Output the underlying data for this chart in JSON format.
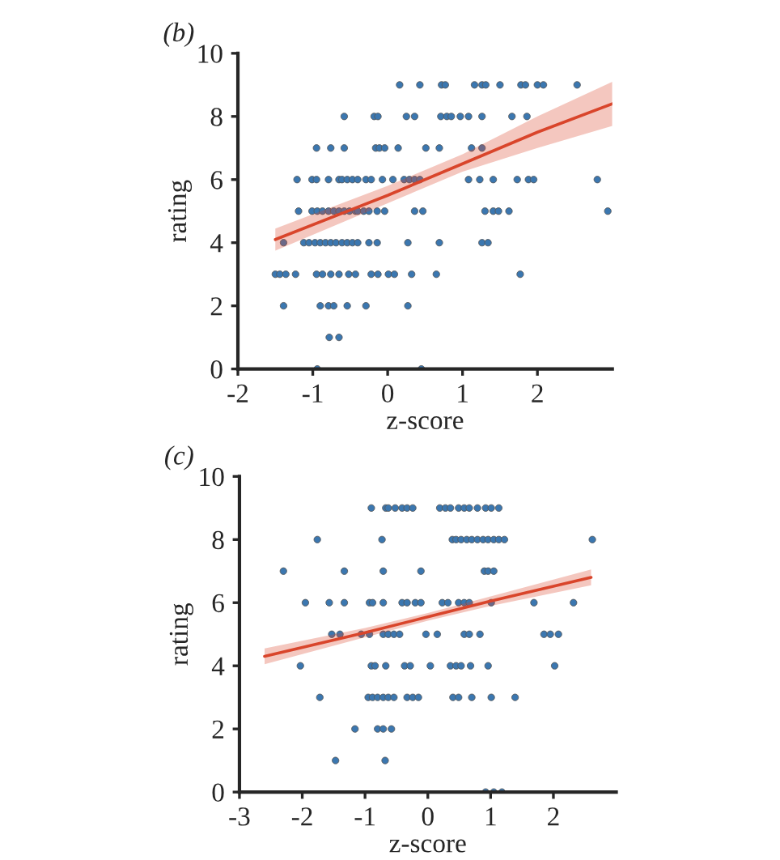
{
  "chart_data": [
    {
      "type": "scatter",
      "annotations": [
        "(b)"
      ],
      "xlabel": "z-score",
      "ylabel": "rating",
      "xlim": [
        -2,
        3
      ],
      "ylim": [
        0,
        10
      ],
      "xticks": [
        -2,
        -1,
        0,
        1,
        2
      ],
      "yticks": [
        0,
        2,
        4,
        6,
        8,
        10
      ],
      "grid": false,
      "legend": false,
      "series": [
        {
          "marker": "circle",
          "color": "#3b77b0",
          "x": [
            0.16,
            0.43,
            0.72,
            0.77,
            1.16,
            1.26,
            1.31,
            1.5,
            1.78,
            1.84,
            2.0,
            2.08,
            2.53,
            -0.58,
            -0.18,
            -0.13,
            0.25,
            0.36,
            0.71,
            0.79,
            0.85,
            0.97,
            1.08,
            1.26,
            1.66,
            1.86,
            -0.95,
            -0.76,
            -0.58,
            -0.16,
            -0.11,
            -0.04,
            0.14,
            0.51,
            0.69,
            1.12,
            1.26,
            -1.21,
            -1.01,
            -0.95,
            -0.79,
            -0.65,
            -0.61,
            -0.54,
            -0.47,
            -0.4,
            -0.29,
            -0.22,
            -0.07,
            0.07,
            0.22,
            0.29,
            0.36,
            0.43,
            1.08,
            1.23,
            1.41,
            1.73,
            1.88,
            1.95,
            2.8,
            -1.19,
            -1.01,
            -0.94,
            -0.87,
            -0.79,
            -0.72,
            -0.65,
            -0.58,
            -0.51,
            -0.43,
            -0.4,
            -0.32,
            -0.25,
            -0.14,
            -0.04,
            0.36,
            0.47,
            1.3,
            1.41,
            1.48,
            1.62,
            2.94,
            -1.39,
            -1.12,
            -1.05,
            -0.97,
            -0.9,
            -0.83,
            -0.76,
            -0.69,
            -0.61,
            -0.54,
            -0.47,
            -0.4,
            -0.25,
            -0.14,
            0.27,
            0.69,
            1.26,
            1.34,
            -1.5,
            -1.44,
            -1.36,
            -1.23,
            -0.95,
            -0.87,
            -0.76,
            -0.65,
            -0.52,
            -0.43,
            -0.22,
            -0.13,
            0.01,
            0.09,
            0.32,
            0.65,
            1.77,
            -1.39,
            -0.9,
            -0.79,
            -0.72,
            -0.54,
            -0.29,
            0.27,
            -0.78,
            -0.65,
            -0.94,
            0.45
          ],
          "values": [
            9,
            9,
            9,
            9,
            9,
            9,
            9,
            9,
            9,
            9,
            9,
            9,
            9,
            8,
            8,
            8,
            8,
            8,
            8,
            8,
            8,
            8,
            8,
            8,
            8,
            8,
            7,
            7,
            7,
            7,
            7,
            7,
            7,
            7,
            7,
            7,
            7,
            6,
            6,
            6,
            6,
            6,
            6,
            6,
            6,
            6,
            6,
            6,
            6,
            6,
            6,
            6,
            6,
            6,
            6,
            6,
            6,
            6,
            6,
            6,
            6,
            5,
            5,
            5,
            5,
            5,
            5,
            5,
            5,
            5,
            5,
            5,
            5,
            5,
            5,
            5,
            5,
            5,
            5,
            5,
            5,
            5,
            5,
            4,
            4,
            4,
            4,
            4,
            4,
            4,
            4,
            4,
            4,
            4,
            4,
            4,
            4,
            4,
            4,
            4,
            4,
            3,
            3,
            3,
            3,
            3,
            3,
            3,
            3,
            3,
            3,
            3,
            3,
            3,
            3,
            3,
            3,
            3,
            2,
            2,
            2,
            2,
            2,
            2,
            2,
            1,
            1,
            0,
            0
          ]
        },
        {
          "type": "line",
          "color": "#d9452b",
          "x": [
            -1.5,
            0,
            1,
            2,
            3
          ],
          "values": [
            4.1,
            5.5,
            6.5,
            7.5,
            8.4
          ],
          "lower": [
            3.75,
            5.25,
            6.25,
            7.0,
            7.7
          ],
          "upper": [
            4.45,
            5.8,
            6.8,
            8.0,
            9.1
          ]
        }
      ]
    },
    {
      "type": "scatter",
      "annotations": [
        "(c)"
      ],
      "xlabel": "z-score",
      "ylabel": "rating",
      "xlim": [
        -3,
        3
      ],
      "ylim": [
        0,
        10
      ],
      "xticks": [
        -3,
        -2,
        -1,
        0,
        1,
        2
      ],
      "yticks": [
        0,
        2,
        4,
        6,
        8,
        10
      ],
      "grid": false,
      "legend": false,
      "series": [
        {
          "marker": "circle",
          "color": "#3b77b0",
          "x": [
            -0.9,
            -0.67,
            -0.63,
            -0.52,
            -0.41,
            -0.33,
            -0.24,
            0.19,
            0.28,
            0.36,
            0.49,
            0.58,
            0.66,
            0.79,
            0.92,
            1.01,
            1.13,
            -1.76,
            -0.73,
            0.39,
            0.45,
            0.53,
            0.62,
            0.7,
            0.79,
            0.88,
            0.96,
            1.05,
            1.13,
            1.22,
            2.62,
            -2.3,
            -1.33,
            -0.71,
            -0.11,
            0.9,
            0.96,
            1.05,
            -1.95,
            -1.57,
            -1.33,
            -0.93,
            -0.88,
            -0.71,
            -0.41,
            -0.33,
            -0.2,
            -0.11,
            0.23,
            0.32,
            0.49,
            0.58,
            0.66,
            1.01,
            1.69,
            2.32,
            -1.53,
            -1.4,
            -1.06,
            -0.93,
            -0.71,
            -0.63,
            -0.54,
            -0.45,
            -0.03,
            0.15,
            0.58,
            0.66,
            0.83,
            1.85,
            1.95,
            2.08,
            -2.03,
            -0.9,
            -0.84,
            -0.67,
            -0.37,
            -0.28,
            0.04,
            0.36,
            0.45,
            0.53,
            0.68,
            0.96,
            2.02,
            -1.72,
            -0.95,
            -0.88,
            -0.8,
            -0.71,
            -0.63,
            -0.54,
            -0.33,
            -0.24,
            -0.15,
            0.4,
            0.49,
            0.7,
            1.01,
            1.39,
            -1.16,
            -0.8,
            -0.71,
            -0.58,
            -1.47,
            -0.68,
            0.92,
            1.05,
            1.18
          ],
          "values": [
            9,
            9,
            9,
            9,
            9,
            9,
            9,
            9,
            9,
            9,
            9,
            9,
            9,
            9,
            9,
            9,
            9,
            8,
            8,
            8,
            8,
            8,
            8,
            8,
            8,
            8,
            8,
            8,
            8,
            8,
            8,
            7,
            7,
            7,
            7,
            7,
            7,
            7,
            6,
            6,
            6,
            6,
            6,
            6,
            6,
            6,
            6,
            6,
            6,
            6,
            6,
            6,
            6,
            6,
            6,
            6,
            5,
            5,
            5,
            5,
            5,
            5,
            5,
            5,
            5,
            5,
            5,
            5,
            5,
            5,
            5,
            5,
            4,
            4,
            4,
            4,
            4,
            4,
            4,
            4,
            4,
            4,
            4,
            4,
            4,
            3,
            3,
            3,
            3,
            3,
            3,
            3,
            3,
            3,
            3,
            3,
            3,
            3,
            3,
            3,
            2,
            2,
            2,
            2,
            1,
            1,
            0,
            0,
            0
          ]
        },
        {
          "type": "line",
          "color": "#d9452b",
          "x": [
            -2.6,
            -1,
            0,
            1,
            2.6
          ],
          "values": [
            4.3,
            5.05,
            5.55,
            6.05,
            6.8
          ],
          "lower": [
            4.05,
            4.9,
            5.43,
            5.9,
            6.55
          ],
          "upper": [
            4.55,
            5.2,
            5.67,
            6.2,
            7.05
          ]
        }
      ]
    }
  ]
}
